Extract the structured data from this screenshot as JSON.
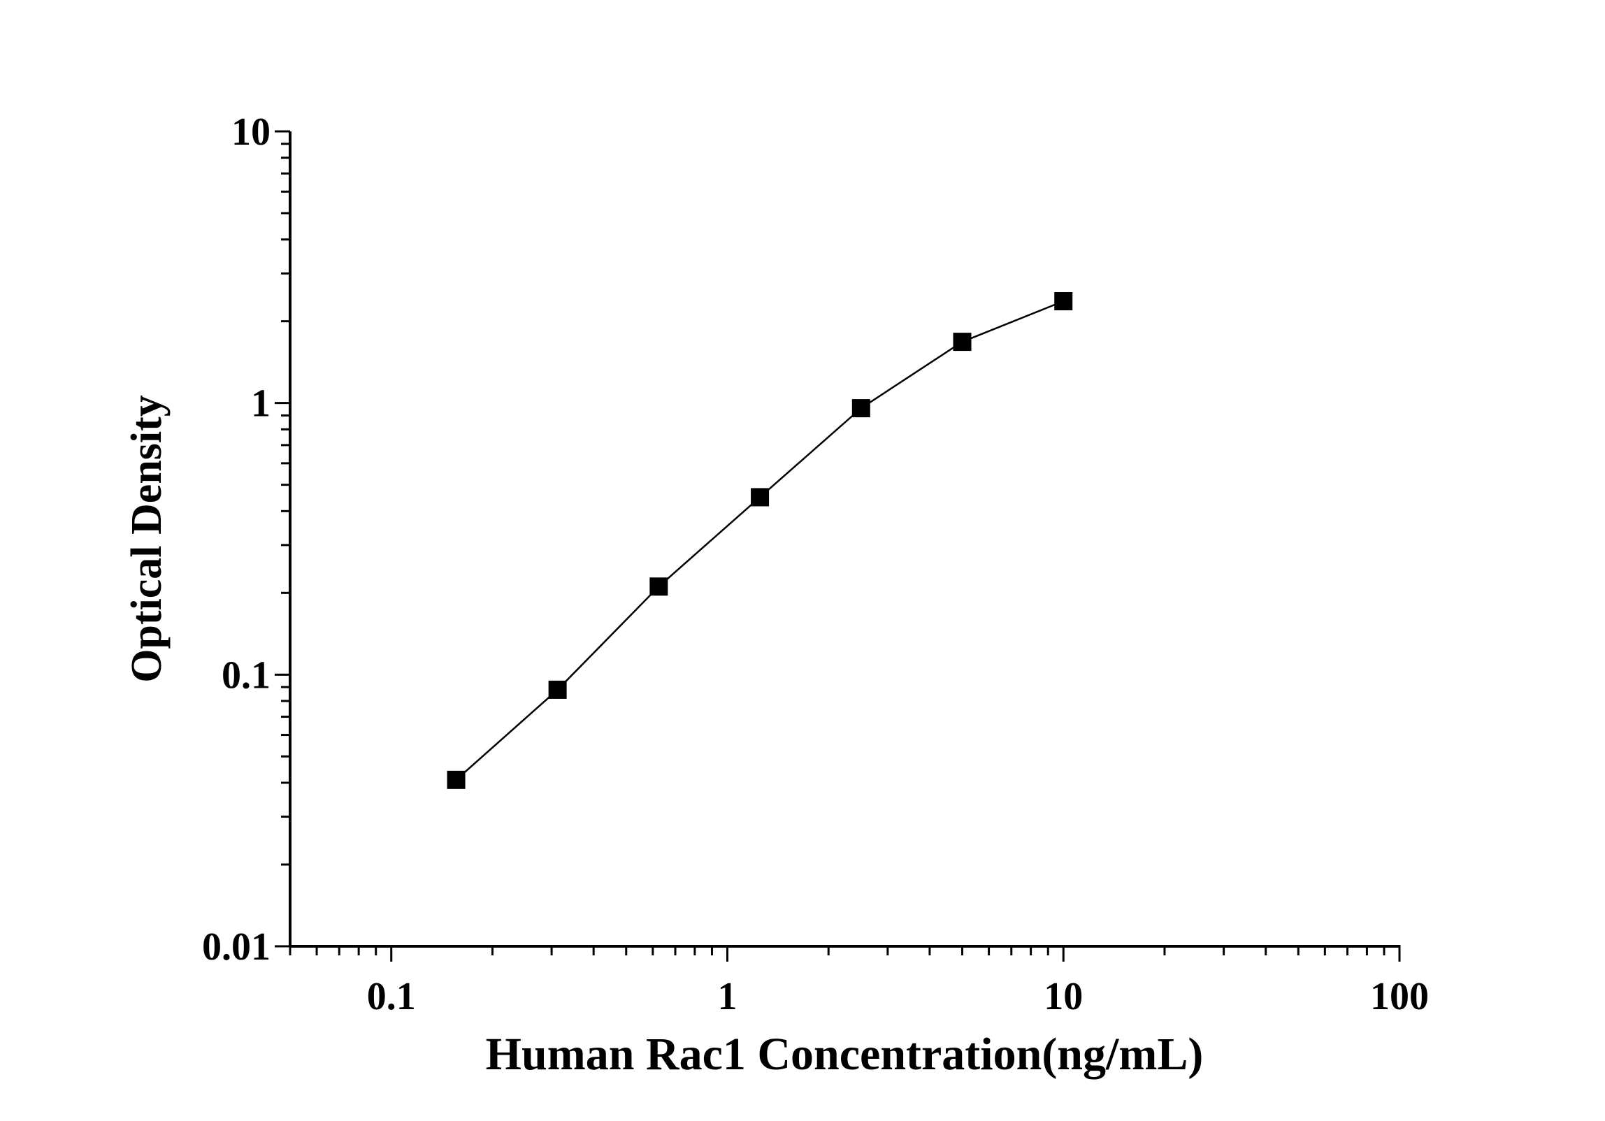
{
  "chart_data": {
    "type": "line",
    "title": "",
    "xlabel": "Human Rac1 Concentration(ng/mL)",
    "ylabel": "Optical Density",
    "x_scale": "log",
    "y_scale": "log",
    "xlim": [
      0.05,
      100
    ],
    "ylim": [
      0.01,
      10
    ],
    "x_ticks": [
      0.1,
      1,
      10,
      100
    ],
    "x_tick_labels": [
      "0.1",
      "1",
      "10",
      "100"
    ],
    "y_ticks": [
      0.01,
      0.1,
      1,
      10
    ],
    "y_tick_labels": [
      "0.01",
      "0.1",
      "1",
      "10"
    ],
    "grid": false,
    "marker": "square",
    "color": "#000000",
    "series": [
      {
        "x": [
          0.156,
          0.3125,
          0.625,
          1.25,
          2.5,
          5,
          10
        ],
        "y": [
          0.041,
          0.088,
          0.211,
          0.45,
          0.957,
          1.68,
          2.37
        ]
      }
    ]
  }
}
